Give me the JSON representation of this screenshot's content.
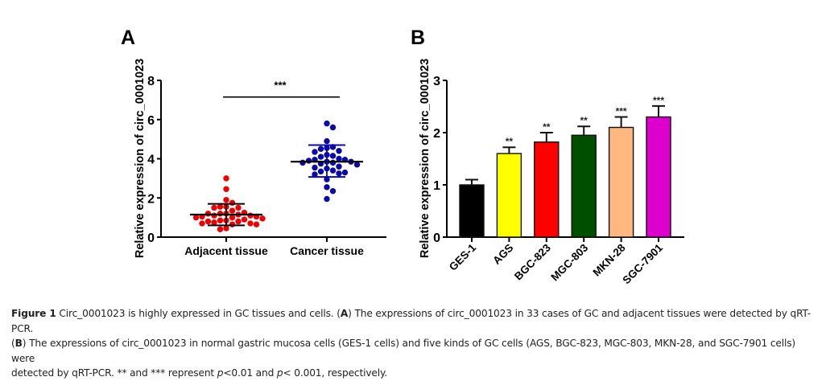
{
  "chart_data": [
    {
      "panel_label": "A",
      "type": "scatter",
      "title": "",
      "xlabel": "",
      "ylabel": "Relative expression of circ_0001023",
      "ylim": [
        0,
        8
      ],
      "yticks": [
        0,
        2,
        4,
        6,
        8
      ],
      "grid": false,
      "categories": [
        "Adjacent tissue",
        "Cancer tissue"
      ],
      "series": [
        {
          "name": "Adjacent tissue",
          "color": "#EE0000",
          "mean": 1.15,
          "sd_upper": 1.7,
          "sd_lower": 0.6,
          "points": [
            3.0,
            2.45,
            1.9,
            1.75,
            1.55,
            1.5,
            1.55,
            1.35,
            1.5,
            1.2,
            1.25,
            1.15,
            1.1,
            1.05,
            1.05,
            1.1,
            1.2,
            1.2,
            1.0,
            1.0,
            0.95,
            0.85,
            0.8,
            0.8,
            0.75,
            0.7,
            0.7,
            0.65,
            0.65,
            0.85,
            0.9,
            0.45,
            0.4
          ]
        },
        {
          "name": "Cancer tissue",
          "color": "#0A0AAA",
          "mean": 3.85,
          "sd_upper": 4.7,
          "sd_lower": 3.07,
          "points": [
            5.8,
            5.6,
            4.9,
            4.55,
            4.5,
            4.4,
            4.35,
            4.2,
            4.15,
            4.1,
            4.0,
            3.95,
            3.95,
            3.9,
            3.85,
            3.85,
            3.8,
            3.8,
            3.75,
            3.7,
            3.6,
            3.55,
            3.5,
            3.4,
            3.35,
            3.3,
            3.25,
            3.2,
            2.95,
            2.55,
            2.35,
            1.95,
            4.6
          ]
        }
      ],
      "significance": {
        "label": "***",
        "between": [
          "Adjacent tissue",
          "Cancer tissue"
        ],
        "bracket_y": 7.15
      }
    },
    {
      "panel_label": "B",
      "type": "bar",
      "title": "",
      "xlabel": "",
      "ylabel": "Relative expression of circ_0001023",
      "ylim": [
        0,
        3
      ],
      "yticks": [
        0,
        1,
        2,
        3
      ],
      "grid": false,
      "categories": [
        "GES-1",
        "AGS",
        "BGC-823",
        "MGC-803",
        "MKN-28",
        "SGC-7901"
      ],
      "values": [
        1.0,
        1.6,
        1.82,
        1.95,
        2.1,
        2.3
      ],
      "errors": [
        0.1,
        0.12,
        0.18,
        0.17,
        0.2,
        0.21
      ],
      "colors": [
        "#000000",
        "#FFFF00",
        "#FF0000",
        "#004F00",
        "#FFB980",
        "#DD00CC"
      ],
      "significance": [
        "",
        "**",
        "**",
        "**",
        "***",
        "***"
      ]
    }
  ],
  "caption": {
    "figure_label": "Figure 1",
    "line1_text": " Circ_0001023 is highly expressed in GC tissues and cells. (",
    "line1_a": "A",
    "line1_rest": ") The expressions of circ_0001023 in 33 cases of GC and adjacent tissues were detected by qRT-PCR.",
    "line2_open": "(",
    "line2_b": "B",
    "line2_rest": ") The expressions of circ_0001023 in normal gastric mucosa cells (GES-1 cells) and five kinds of GC cells (AGS, BGC-823, MGC-803, MKN-28, and SGC-7901 cells) were",
    "line3_a": "detected by qRT-PCR. ** and *** represent ",
    "line3_p1": "p",
    "line3_b": "<0.01 and ",
    "line3_p2": "p",
    "line3_c": "< 0.001, respectively."
  }
}
